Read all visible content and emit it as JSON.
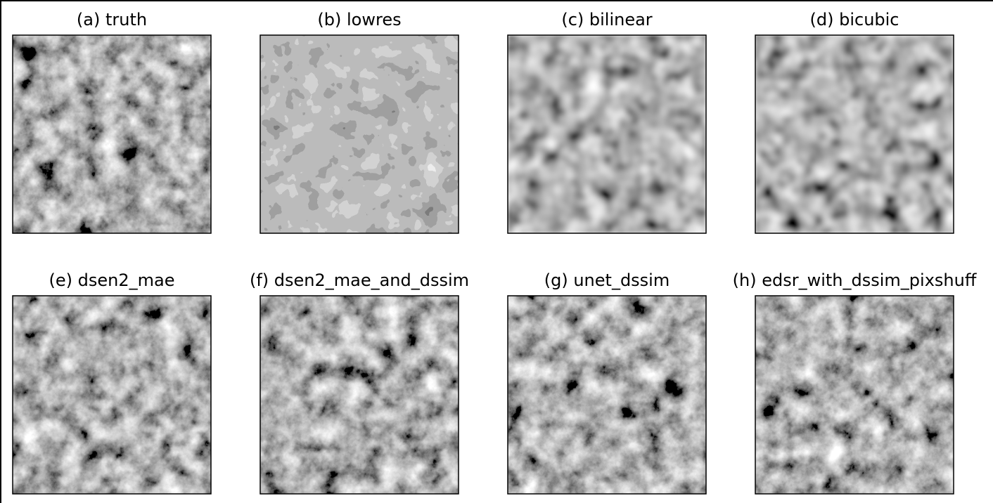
{
  "panels": [
    {
      "title": "(a) truth"
    },
    {
      "title": "(b) lowres"
    },
    {
      "title": "(c) bilinear"
    },
    {
      "title": "(d) bicubic"
    },
    {
      "title": "(e) dsen2_mae"
    },
    {
      "title": "(f) dsen2_mae_and_dssim"
    },
    {
      "title": "(g) unet_dssim"
    },
    {
      "title": "(h) edsr_with_dssim_pixshuff"
    }
  ]
}
